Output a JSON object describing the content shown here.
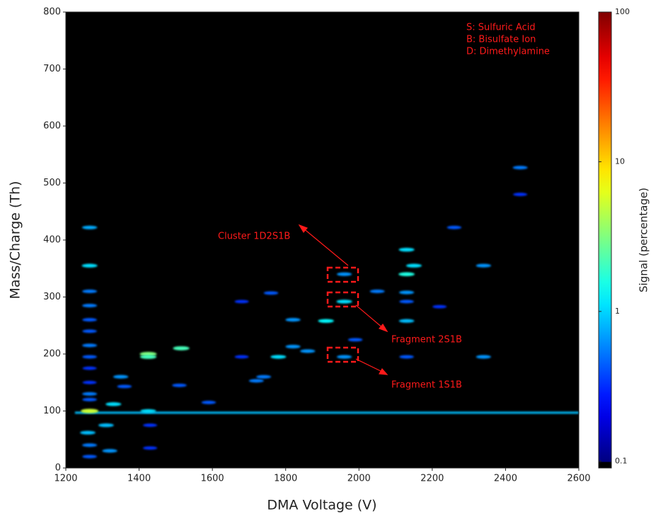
{
  "chart_data": {
    "type": "heatmap",
    "x_label": "DMA Voltage (V)",
    "y_label": "Mass/Charge (Th)",
    "colorbar_label": "Signal (percentage)",
    "xlim": [
      1200,
      2600
    ],
    "xticks": [
      1200,
      1400,
      1600,
      1800,
      2000,
      2200,
      2400,
      2600
    ],
    "ylim": [
      0,
      800
    ],
    "yticks": [
      0,
      100,
      200,
      300,
      400,
      500,
      600,
      700,
      800
    ],
    "clim": [
      0.09,
      100
    ],
    "cticks": [
      0.1,
      1,
      10,
      100
    ],
    "log_color_scale": true,
    "colormap": "jet",
    "background": "#000000",
    "legend_text": [
      "S: Sulfuric Acid",
      "B: Bisulfate Ion",
      "D: Dimethylamine"
    ],
    "annotations": [
      "Cluster 1D2S1B",
      "Fragment 2S1B",
      "Fragment 1S1B"
    ],
    "bands": {
      "y": [
        97
      ],
      "x_start": [
        1225
      ],
      "x_end": [
        2600
      ],
      "values": [
        0.8
      ]
    },
    "spots": {
      "x": [
        1265,
        1265,
        1265,
        1265,
        1265,
        1265,
        1265,
        1265,
        1265,
        1265,
        1265,
        1265,
        1265,
        1265,
        1265,
        1260,
        1310,
        1320,
        1330,
        1350,
        1360,
        1425,
        1425,
        1425,
        1430,
        1430,
        1515,
        1510,
        1590,
        1680,
        1680,
        1760,
        1780,
        1740,
        1720,
        1820,
        1820,
        1860,
        1910,
        1960,
        1960,
        1960,
        1990,
        2050,
        2130,
        2130,
        2150,
        2130,
        2130,
        2130,
        2130,
        2220,
        2260,
        2340,
        2340,
        2440,
        2440
      ],
      "y": [
        100,
        355,
        422,
        310,
        285,
        260,
        240,
        215,
        195,
        175,
        150,
        130,
        120,
        40,
        20,
        62,
        75,
        30,
        112,
        160,
        143,
        200,
        195,
        100,
        75,
        35,
        210,
        145,
        115,
        292,
        195,
        307,
        195,
        160,
        153,
        260,
        213,
        205,
        258,
        292,
        340,
        195,
        225,
        310,
        383,
        340,
        355,
        308,
        258,
        292,
        195,
        283,
        422,
        355,
        195,
        527,
        480
      ],
      "values": [
        5,
        1,
        0.7,
        0.5,
        0.5,
        0.4,
        0.4,
        0.5,
        0.4,
        0.3,
        0.3,
        0.5,
        0.4,
        0.5,
        0.4,
        0.8,
        0.8,
        0.6,
        1,
        0.6,
        0.4,
        3,
        2,
        1,
        0.3,
        0.3,
        2,
        0.4,
        0.4,
        0.3,
        0.3,
        0.4,
        1,
        0.5,
        0.5,
        0.6,
        0.6,
        0.6,
        1.2,
        1,
        0.6,
        0.6,
        0.4,
        0.5,
        1,
        1.5,
        1,
        0.6,
        0.8,
        0.4,
        0.4,
        0.3,
        0.4,
        0.6,
        0.6,
        0.5,
        0.3
      ]
    }
  }
}
